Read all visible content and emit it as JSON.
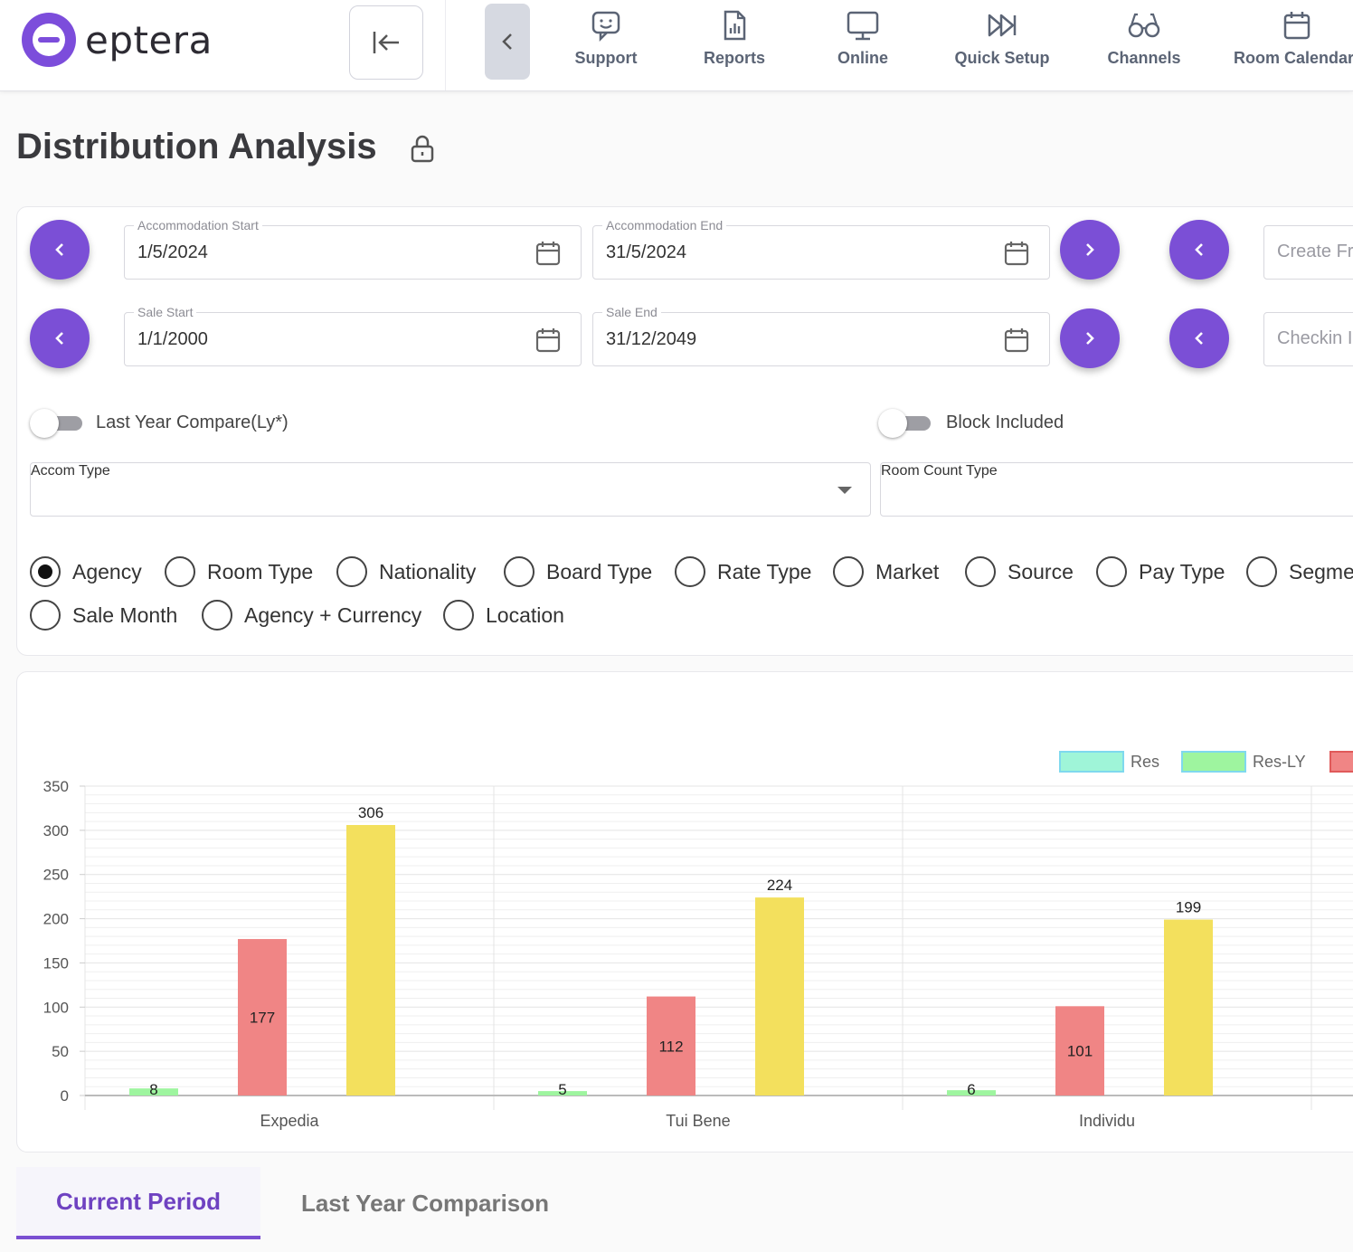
{
  "app": {
    "brand": "eptera"
  },
  "nav": {
    "items": [
      {
        "label": "Support",
        "icon": "support-chat-icon"
      },
      {
        "label": "Reports",
        "icon": "report-file-icon"
      },
      {
        "label": "Online",
        "icon": "monitor-icon"
      },
      {
        "label": "Quick Setup",
        "icon": "fast-forward-icon"
      },
      {
        "label": "Channels",
        "icon": "glasses-icon"
      },
      {
        "label": "Room Calendar",
        "icon": "calendar-icon"
      }
    ]
  },
  "page": {
    "title": "Distribution Analysis"
  },
  "filters": {
    "accom_start": {
      "label": "Accommodation Start",
      "value": "1/5/2024"
    },
    "accom_end": {
      "label": "Accommodation End",
      "value": "31/5/2024"
    },
    "sale_start": {
      "label": "Sale Start",
      "value": "1/1/2000"
    },
    "sale_end": {
      "label": "Sale End",
      "value": "31/12/2049"
    },
    "create_from": {
      "placeholder": "Create Fr"
    },
    "checkin": {
      "placeholder": "Checkin I"
    },
    "last_year_compare": {
      "label": "Last Year Compare(Ly*)",
      "on": false
    },
    "block_included": {
      "label": "Block Included",
      "on": false
    },
    "accom_type": {
      "placeholder": "Accom Type"
    },
    "room_count_type": {
      "placeholder": "Room Count Type"
    },
    "group_by": [
      {
        "label": "Agency",
        "selected": true
      },
      {
        "label": "Room Type",
        "selected": false
      },
      {
        "label": "Nationality",
        "selected": false
      },
      {
        "label": "Board Type",
        "selected": false
      },
      {
        "label": "Rate Type",
        "selected": false
      },
      {
        "label": "Market",
        "selected": false
      },
      {
        "label": "Source",
        "selected": false
      },
      {
        "label": "Pay Type",
        "selected": false
      },
      {
        "label": "Segme",
        "selected": false
      },
      {
        "label": "Sale Month",
        "selected": false
      },
      {
        "label": "Agency + Currency",
        "selected": false
      },
      {
        "label": "Location",
        "selected": false
      }
    ]
  },
  "chart_data": {
    "type": "bar",
    "categories": [
      "Expedia",
      "Tui Bene",
      "Individu"
    ],
    "series": [
      {
        "name": "Res",
        "color": "#9ff5d8",
        "values": [
          null,
          null,
          null
        ]
      },
      {
        "name": "Res-LY",
        "color": "#9ef59f",
        "values": [
          8,
          5,
          6
        ]
      },
      {
        "name": "",
        "color": "#f08585",
        "values": [
          177,
          112,
          101
        ]
      },
      {
        "name": "",
        "color": "#f3e05d",
        "values": [
          306,
          224,
          199
        ]
      }
    ],
    "ylim": [
      0,
      350
    ],
    "yticks": [
      0,
      50,
      100,
      150,
      200,
      250,
      300,
      350
    ],
    "legend": "top-right",
    "grid": true
  },
  "tabs": [
    {
      "label": "Current Period",
      "active": true
    },
    {
      "label": "Last Year Comparison",
      "active": false
    }
  ]
}
